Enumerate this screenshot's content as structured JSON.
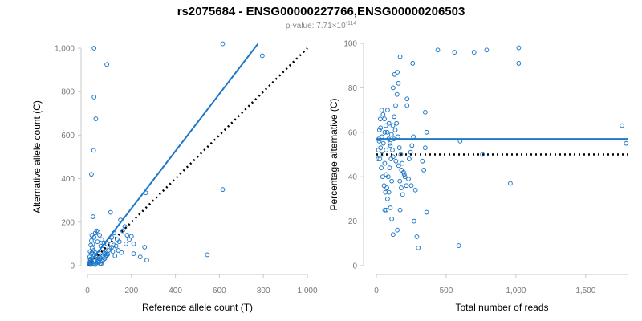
{
  "header": {
    "title": "rs2075684 - ENSG00000227766,ENSG00000206503",
    "pvalue_prefix": "p-value: 7.71×10",
    "pvalue_exponent": "-114"
  },
  "colors": {
    "points": "#1f78c8",
    "fit": "#1f78c8",
    "reference": "#000000"
  },
  "chart_data": [
    {
      "type": "scatter",
      "xlabel": "Reference allele count (T)",
      "ylabel": "Alternative allele count (C)",
      "xlim": [
        0,
        1000
      ],
      "ylim": [
        0,
        1000
      ],
      "xticks": [
        0,
        200,
        400,
        600,
        800,
        1000
      ],
      "xticklabels": [
        "0",
        "200",
        "400",
        "600",
        "800",
        "1,000"
      ],
      "yticks": [
        0,
        200,
        400,
        600,
        800,
        1000
      ],
      "yticklabels": [
        "0",
        "200",
        "400",
        "600",
        "800",
        "1,000"
      ],
      "grid": false,
      "fit_line": {
        "style": "solid",
        "from": [
          0,
          0
        ],
        "to": [
          775,
          1020
        ]
      },
      "reference_line": {
        "style": "dotted",
        "from": [
          0,
          0
        ],
        "to": [
          1000,
          1000
        ]
      },
      "points": [
        [
          615,
          1020
        ],
        [
          795,
          965
        ],
        [
          88,
          925
        ],
        [
          30,
          1000
        ],
        [
          30,
          775
        ],
        [
          38,
          675
        ],
        [
          28,
          530
        ],
        [
          18,
          420
        ],
        [
          265,
          335
        ],
        [
          615,
          350
        ],
        [
          545,
          50
        ],
        [
          25,
          225
        ],
        [
          105,
          245
        ],
        [
          150,
          210
        ],
        [
          170,
          180
        ],
        [
          180,
          140
        ],
        [
          145,
          110
        ],
        [
          160,
          160
        ],
        [
          120,
          150
        ],
        [
          260,
          85
        ],
        [
          270,
          25
        ],
        [
          210,
          55
        ],
        [
          240,
          40
        ],
        [
          130,
          90
        ],
        [
          100,
          115
        ],
        [
          90,
          100
        ],
        [
          110,
          130
        ],
        [
          135,
          120
        ],
        [
          60,
          90
        ],
        [
          70,
          75
        ],
        [
          75,
          60
        ],
        [
          50,
          55
        ],
        [
          40,
          45
        ],
        [
          20,
          140
        ],
        [
          18,
          115
        ],
        [
          15,
          95
        ],
        [
          22,
          80
        ],
        [
          28,
          70
        ],
        [
          35,
          60
        ],
        [
          10,
          40
        ],
        [
          12,
          30
        ],
        [
          15,
          25
        ],
        [
          18,
          20
        ],
        [
          20,
          15
        ],
        [
          25,
          10
        ],
        [
          30,
          8
        ],
        [
          35,
          5
        ],
        [
          40,
          12
        ],
        [
          45,
          18
        ],
        [
          50,
          25
        ],
        [
          55,
          30
        ],
        [
          60,
          35
        ],
        [
          65,
          40
        ],
        [
          70,
          45
        ],
        [
          80,
          55
        ],
        [
          85,
          65
        ],
        [
          95,
          70
        ],
        [
          100,
          80
        ],
        [
          110,
          85
        ],
        [
          120,
          95
        ],
        [
          8,
          10
        ],
        [
          10,
          15
        ],
        [
          12,
          8
        ],
        [
          14,
          5
        ],
        [
          16,
          12
        ],
        [
          22,
          35
        ],
        [
          26,
          45
        ],
        [
          32,
          50
        ],
        [
          38,
          38
        ],
        [
          42,
          30
        ],
        [
          48,
          22
        ],
        [
          52,
          15
        ],
        [
          58,
          10
        ],
        [
          62,
          8
        ],
        [
          68,
          20
        ],
        [
          72,
          28
        ],
        [
          78,
          32
        ],
        [
          82,
          42
        ],
        [
          88,
          48
        ],
        [
          92,
          52
        ],
        [
          140,
          70
        ],
        [
          155,
          60
        ],
        [
          175,
          100
        ],
        [
          190,
          120
        ],
        [
          200,
          135
        ],
        [
          20,
          60
        ],
        [
          24,
          100
        ],
        [
          30,
          130
        ],
        [
          36,
          150
        ],
        [
          42,
          160
        ],
        [
          48,
          155
        ],
        [
          55,
          140
        ],
        [
          18,
          55
        ],
        [
          12,
          65
        ],
        [
          45,
          110
        ],
        [
          65,
          120
        ],
        [
          75,
          105
        ],
        [
          115,
          65
        ],
        [
          125,
          45
        ],
        [
          210,
          100
        ]
      ]
    },
    {
      "type": "scatter",
      "xlabel": "Total number of reads",
      "ylabel": "Percentage alternative (C)",
      "xlim": [
        0,
        1800
      ],
      "ylim": [
        0,
        100
      ],
      "xticks": [
        0,
        500,
        1000,
        1500
      ],
      "xticklabels": [
        "0",
        "500",
        "1,000",
        "1,500"
      ],
      "yticks": [
        0,
        20,
        40,
        60,
        80,
        100
      ],
      "yticklabels": [
        "0",
        "20",
        "40",
        "60",
        "80",
        "100"
      ],
      "grid": false,
      "fit_line": {
        "style": "solid",
        "y": 57
      },
      "reference_line": {
        "style": "dotted",
        "y": 50
      },
      "points": [
        [
          440,
          97
        ],
        [
          560,
          96
        ],
        [
          700,
          96
        ],
        [
          790,
          97
        ],
        [
          1020,
          98
        ],
        [
          1020,
          91
        ],
        [
          960,
          37
        ],
        [
          1760,
          63
        ],
        [
          1790,
          55
        ],
        [
          590,
          9
        ],
        [
          600,
          56
        ],
        [
          760,
          50
        ],
        [
          360,
          24
        ],
        [
          290,
          13
        ],
        [
          300,
          8
        ],
        [
          270,
          20
        ],
        [
          280,
          34
        ],
        [
          340,
          43
        ],
        [
          330,
          47
        ],
        [
          350,
          53
        ],
        [
          360,
          60
        ],
        [
          350,
          69
        ],
        [
          260,
          91
        ],
        [
          170,
          94
        ],
        [
          150,
          87
        ],
        [
          130,
          86
        ],
        [
          120,
          80
        ],
        [
          220,
          75
        ],
        [
          220,
          72
        ],
        [
          90,
          64
        ],
        [
          80,
          70
        ],
        [
          60,
          60
        ],
        [
          40,
          58
        ],
        [
          50,
          55
        ],
        [
          70,
          52
        ],
        [
          100,
          54
        ],
        [
          120,
          49
        ],
        [
          140,
          47
        ],
        [
          160,
          45
        ],
        [
          180,
          43
        ],
        [
          200,
          41
        ],
        [
          230,
          39
        ],
        [
          250,
          36
        ],
        [
          110,
          38
        ],
        [
          90,
          33
        ],
        [
          80,
          30
        ],
        [
          70,
          41
        ],
        [
          60,
          46
        ],
        [
          40,
          50
        ],
        [
          30,
          53
        ],
        [
          20,
          56
        ],
        [
          25,
          48
        ],
        [
          35,
          44
        ],
        [
          45,
          40
        ],
        [
          55,
          36
        ],
        [
          65,
          33
        ],
        [
          75,
          35
        ],
        [
          85,
          40
        ],
        [
          95,
          44
        ],
        [
          105,
          48
        ],
        [
          115,
          52
        ],
        [
          125,
          57
        ],
        [
          135,
          61
        ],
        [
          145,
          64
        ],
        [
          155,
          58
        ],
        [
          165,
          53
        ],
        [
          175,
          50
        ],
        [
          185,
          46
        ],
        [
          195,
          42
        ],
        [
          205,
          40
        ],
        [
          215,
          36
        ],
        [
          235,
          48
        ],
        [
          245,
          51
        ],
        [
          255,
          54
        ],
        [
          265,
          58
        ],
        [
          100,
          26
        ],
        [
          110,
          21
        ],
        [
          150,
          16
        ],
        [
          170,
          25
        ],
        [
          120,
          14
        ],
        [
          60,
          25
        ],
        [
          70,
          25
        ],
        [
          30,
          62
        ],
        [
          28,
          66
        ],
        [
          22,
          61
        ],
        [
          18,
          57
        ],
        [
          15,
          52
        ],
        [
          12,
          48
        ],
        [
          38,
          70
        ],
        [
          48,
          68
        ],
        [
          58,
          66
        ],
        [
          68,
          63
        ],
        [
          78,
          60
        ],
        [
          88,
          57
        ],
        [
          98,
          55
        ],
        [
          108,
          59
        ],
        [
          118,
          63
        ],
        [
          128,
          67
        ],
        [
          138,
          72
        ],
        [
          148,
          77
        ],
        [
          158,
          82
        ],
        [
          168,
          38
        ],
        [
          178,
          35
        ],
        [
          188,
          32
        ]
      ]
    }
  ]
}
